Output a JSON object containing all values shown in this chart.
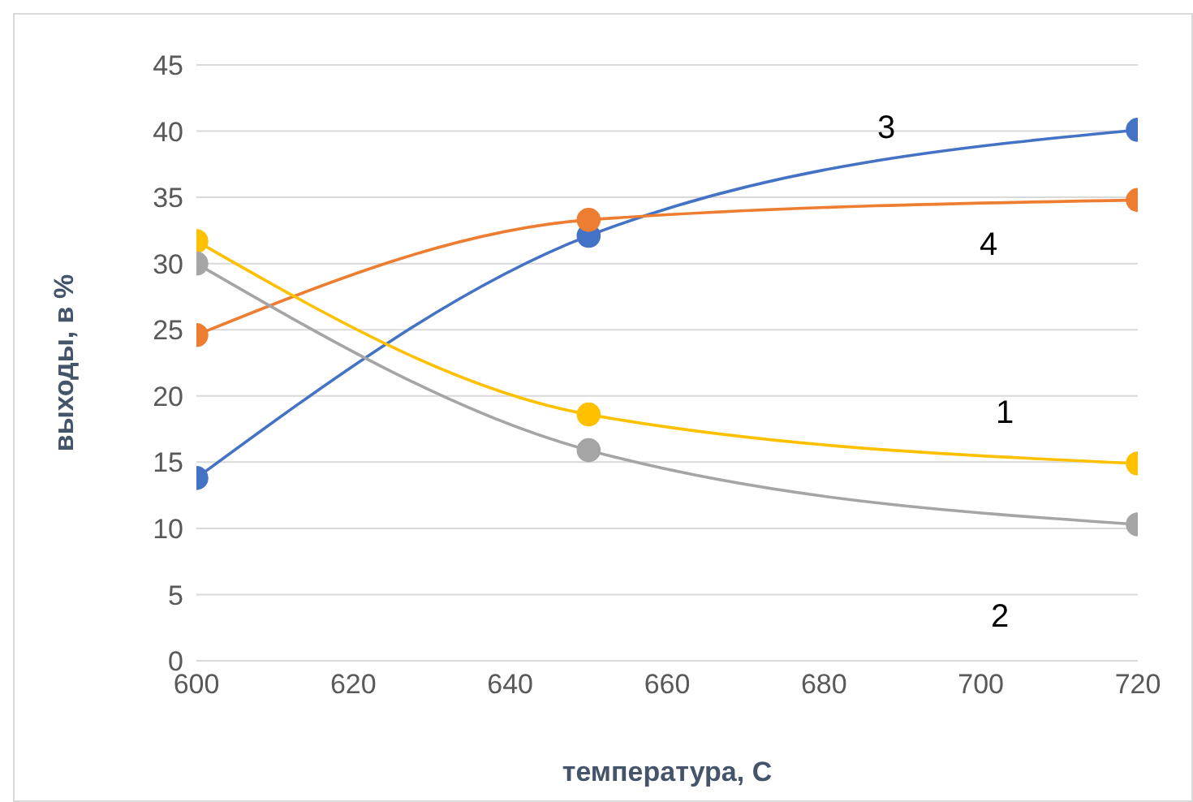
{
  "chart_data": {
    "type": "line",
    "xlabel": "температура, С",
    "ylabel": "выходы, в %",
    "x": [
      600,
      650,
      720
    ],
    "series": [
      {
        "name": "3",
        "color": "#4472c4",
        "values": [
          13.8,
          32.1,
          40.1
        ]
      },
      {
        "name": "4",
        "color": "#ed7d31",
        "values": [
          24.6,
          33.3,
          34.8
        ]
      },
      {
        "name": "1",
        "color": "#ffc000",
        "values": [
          31.7,
          18.6,
          14.9
        ]
      },
      {
        "name": "2",
        "color": "#a5a5a5",
        "values": [
          30.0,
          15.9,
          10.3
        ]
      }
    ],
    "xlim": [
      600,
      720
    ],
    "xticks": [
      600,
      620,
      640,
      660,
      680,
      700,
      720
    ],
    "ylim": [
      0,
      45
    ],
    "yticks": [
      0,
      5,
      10,
      15,
      20,
      25,
      30,
      35,
      40,
      45
    ],
    "grid": "y",
    "legend": false,
    "marker": "circle",
    "line_style": "solid"
  }
}
